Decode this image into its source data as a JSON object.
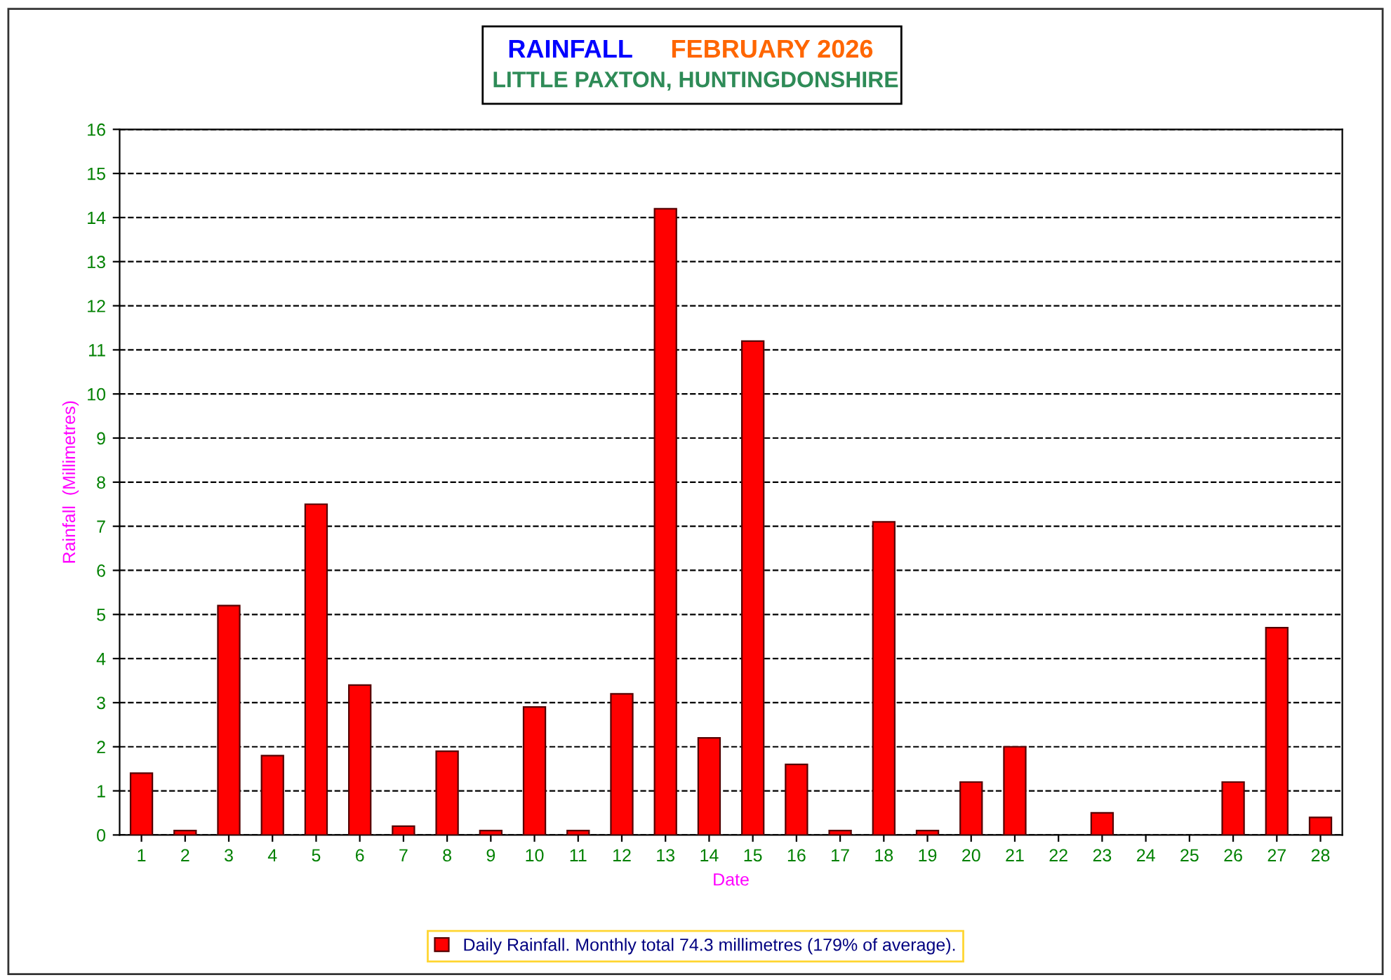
{
  "chart_data": {
    "type": "bar",
    "title": "RAINFALL",
    "subtitle": "LITTLE PAXTON, HUNTINGDONSHIRE",
    "annotations": [
      "FEBRUARY 2026"
    ],
    "xlabel": "Date",
    "ylabel": "Rainfall  (Millimetres)",
    "categories": [
      "1",
      "2",
      "3",
      "4",
      "5",
      "6",
      "7",
      "8",
      "9",
      "10",
      "11",
      "12",
      "13",
      "14",
      "15",
      "16",
      "17",
      "18",
      "19",
      "20",
      "21",
      "22",
      "23",
      "24",
      "25",
      "26",
      "27",
      "28"
    ],
    "series": [
      {
        "name": "Daily Rainfall. Monthly total 74.3 millimetres (179% of average).",
        "color": "#ff0000",
        "values": [
          1.4,
          0.1,
          5.2,
          1.8,
          7.5,
          3.4,
          0.2,
          1.9,
          0.1,
          2.9,
          0.1,
          3.2,
          14.2,
          2.2,
          11.2,
          1.6,
          0.1,
          7.1,
          0.1,
          1.2,
          2.0,
          0,
          0.5,
          0,
          0,
          1.2,
          4.7,
          0.4
        ]
      }
    ],
    "ylim": [
      0,
      16
    ],
    "yticks": [
      0,
      1,
      2,
      3,
      4,
      5,
      6,
      7,
      8,
      9,
      10,
      11,
      12,
      13,
      14,
      15,
      16
    ],
    "grid": "y",
    "legend": "bottom",
    "line_style": "dashed"
  }
}
